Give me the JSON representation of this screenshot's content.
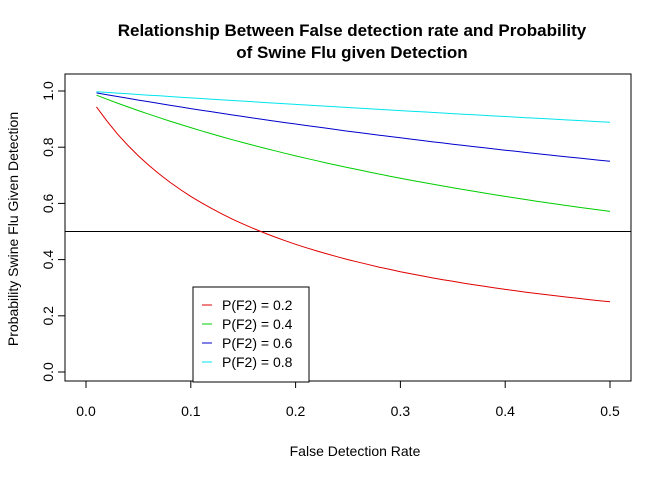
{
  "chart_data": {
    "type": "line",
    "title_lines": [
      "Relationship Between False detection rate and Probability",
      "of Swine Flu given Detection"
    ],
    "xlabel": "False Detection Rate",
    "ylabel": "Probability Swine Flu Given Detection",
    "xlim": [
      0.0,
      0.5
    ],
    "ylim": [
      0.0,
      1.0
    ],
    "x_ticks": [
      0.0,
      0.1,
      0.2,
      0.3,
      0.4,
      0.5
    ],
    "x_tick_labels": [
      "0.0",
      "0.1",
      "0.2",
      "0.3",
      "0.4",
      "0.5"
    ],
    "y_ticks": [
      0.0,
      0.2,
      0.4,
      0.6,
      0.8,
      1.0
    ],
    "y_tick_labels": [
      "0.0",
      "0.2",
      "0.4",
      "0.6",
      "0.8",
      "1.0"
    ],
    "grid": false,
    "legend_position": "bottom-left",
    "hline": {
      "y": 0.5,
      "color": "#000000"
    },
    "x": [
      0.01,
      0.02,
      0.03,
      0.04,
      0.05,
      0.06,
      0.07,
      0.08,
      0.09,
      0.1,
      0.11,
      0.12,
      0.13,
      0.14,
      0.15,
      0.16,
      0.17,
      0.18,
      0.19,
      0.2,
      0.21,
      0.22,
      0.23,
      0.24,
      0.25,
      0.26,
      0.27,
      0.28,
      0.29,
      0.3,
      0.31,
      0.32,
      0.33,
      0.34,
      0.35,
      0.36,
      0.37,
      0.38,
      0.39,
      0.4,
      0.41,
      0.42,
      0.43,
      0.44,
      0.45,
      0.46,
      0.47,
      0.48,
      0.49,
      0.5
    ],
    "series": [
      {
        "name": "P(F2) = 0.2",
        "color": "#DF0000",
        "values": [
          0.9434,
          0.8929,
          0.8475,
          0.8065,
          0.7692,
          0.7353,
          0.7042,
          0.6757,
          0.6494,
          0.625,
          0.6024,
          0.5814,
          0.5618,
          0.5435,
          0.5263,
          0.5102,
          0.495,
          0.4808,
          0.4673,
          0.4545,
          0.4425,
          0.431,
          0.4202,
          0.4098,
          0.4,
          0.3906,
          0.3817,
          0.3731,
          0.365,
          0.3571,
          0.3497,
          0.3425,
          0.3356,
          0.3289,
          0.3226,
          0.3165,
          0.3106,
          0.3049,
          0.2994,
          0.2941,
          0.289,
          0.2841,
          0.2793,
          0.2747,
          0.2703,
          0.266,
          0.2618,
          0.2577,
          0.2538,
          0.25
        ]
      },
      {
        "name": "P(F2) = 0.4",
        "color": "#00CD00",
        "values": [
          0.9852,
          0.9709,
          0.9569,
          0.9434,
          0.9302,
          0.9174,
          0.905,
          0.8929,
          0.8811,
          0.8696,
          0.8584,
          0.8475,
          0.8368,
          0.8264,
          0.8163,
          0.8065,
          0.7968,
          0.7874,
          0.7782,
          0.7692,
          0.7605,
          0.7519,
          0.7435,
          0.7353,
          0.7273,
          0.7194,
          0.7117,
          0.7042,
          0.6969,
          0.6897,
          0.6826,
          0.6757,
          0.6689,
          0.6623,
          0.6557,
          0.6494,
          0.6431,
          0.6369,
          0.6309,
          0.625,
          0.6192,
          0.6135,
          0.6079,
          0.6024,
          0.597,
          0.5917,
          0.5865,
          0.5814,
          0.5764,
          0.5714
        ]
      },
      {
        "name": "P(F2) = 0.6",
        "color": "#0000CD",
        "values": [
          0.9934,
          0.9868,
          0.9804,
          0.974,
          0.9677,
          0.9615,
          0.9554,
          0.9494,
          0.9434,
          0.9375,
          0.9317,
          0.9259,
          0.9202,
          0.9146,
          0.9091,
          0.9036,
          0.8982,
          0.8929,
          0.8876,
          0.8824,
          0.8772,
          0.8721,
          0.8671,
          0.8621,
          0.8571,
          0.8523,
          0.8475,
          0.8427,
          0.838,
          0.8333,
          0.8287,
          0.8242,
          0.8197,
          0.8152,
          0.8108,
          0.8065,
          0.8021,
          0.7979,
          0.7937,
          0.7895,
          0.7853,
          0.7813,
          0.7772,
          0.7732,
          0.7692,
          0.7653,
          0.7614,
          0.7576,
          0.7538,
          0.75
        ]
      },
      {
        "name": "P(F2) = 0.8",
        "color": "#00E5EE",
        "values": [
          0.9975,
          0.995,
          0.9926,
          0.9901,
          0.9877,
          0.9852,
          0.9828,
          0.9804,
          0.978,
          0.9756,
          0.9732,
          0.9709,
          0.9685,
          0.9662,
          0.9639,
          0.9615,
          0.9592,
          0.9569,
          0.9547,
          0.9524,
          0.9501,
          0.9479,
          0.9456,
          0.9434,
          0.9412,
          0.939,
          0.9368,
          0.9346,
          0.9324,
          0.9302,
          0.9281,
          0.9259,
          0.9238,
          0.9217,
          0.9195,
          0.9174,
          0.9153,
          0.9132,
          0.9112,
          0.9091,
          0.907,
          0.905,
          0.9029,
          0.9009,
          0.8989,
          0.8969,
          0.8949,
          0.8929,
          0.8909,
          0.8889
        ]
      }
    ]
  }
}
